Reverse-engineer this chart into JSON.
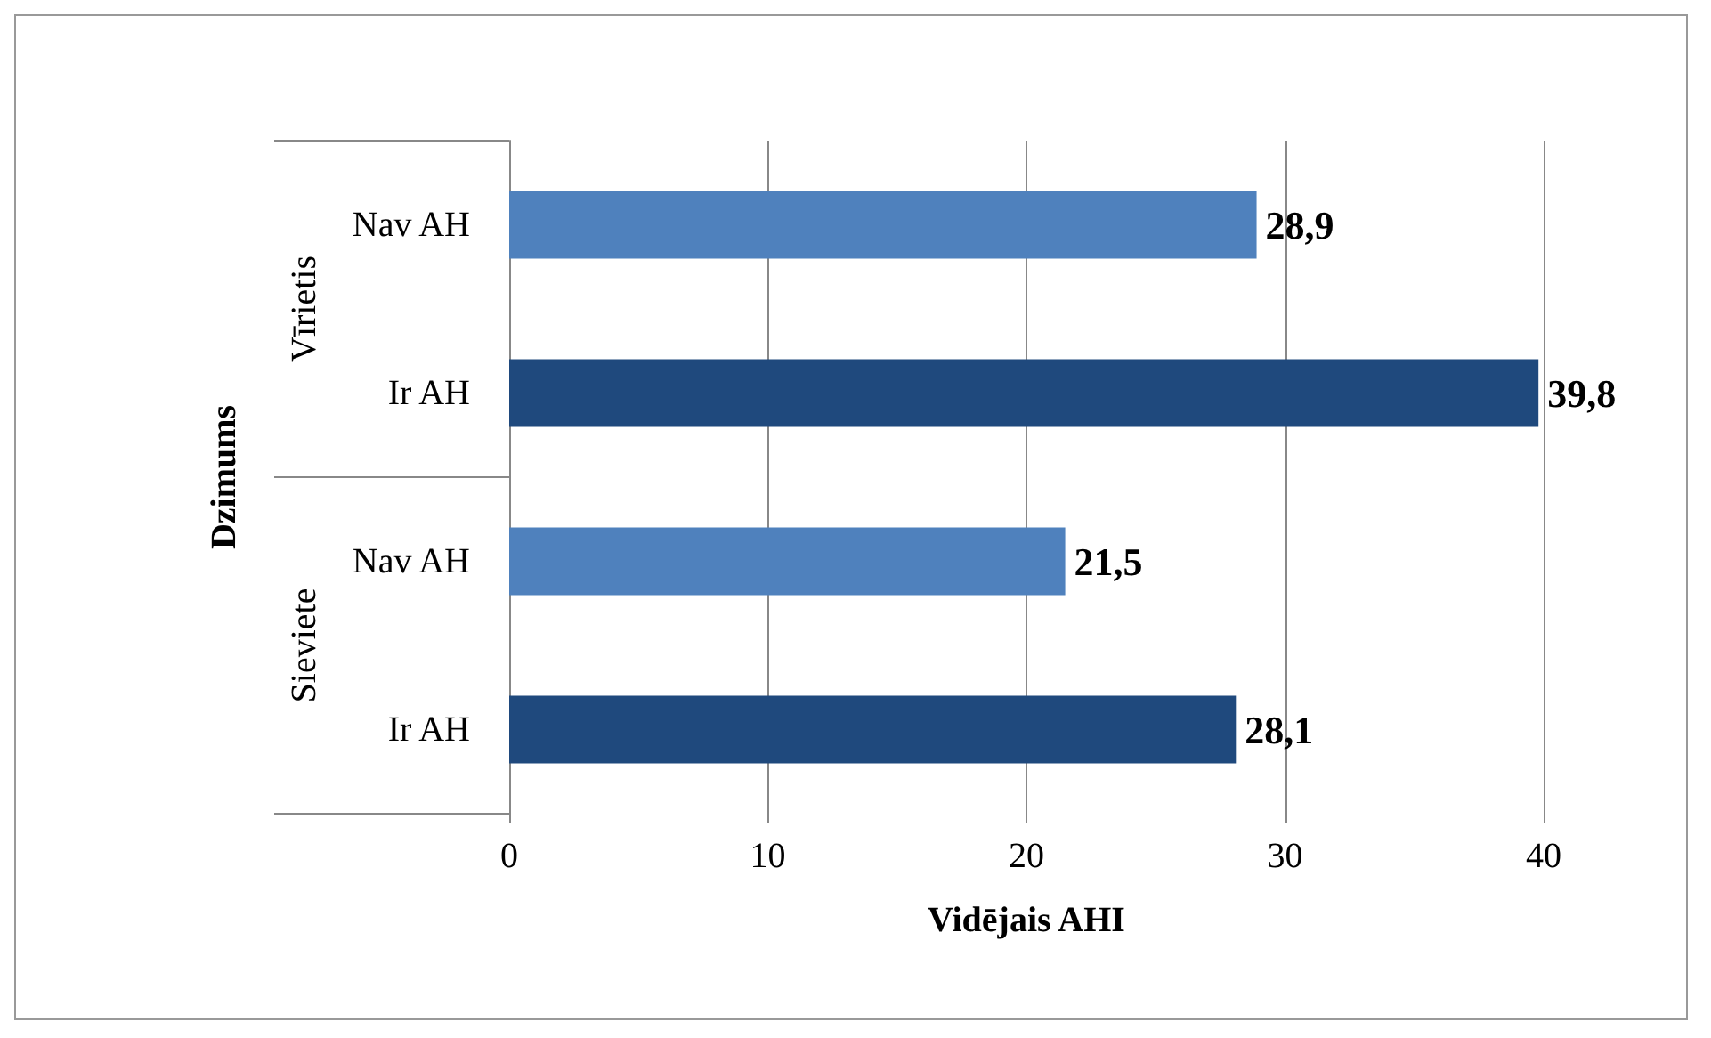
{
  "chart_data": {
    "type": "bar",
    "orientation": "horizontal",
    "ylabel": "Dzimums",
    "xlabel": "Vidējais AHI",
    "categories": [
      "Nav AH",
      "Ir AH",
      "Nav AH",
      "Ir AH"
    ],
    "values": [
      28.9,
      39.8,
      21.5,
      28.1
    ],
    "colors": [
      "#4f81bd",
      "#1f497d",
      "#4f81bd",
      "#1f497d"
    ],
    "value_labels": [
      "28,9",
      "39,8",
      "21,5",
      "28,1"
    ],
    "annotations": [
      "Vīrietis",
      "Sieviete"
    ],
    "xlim": [
      0,
      40
    ],
    "xticks": [
      0,
      10,
      20,
      30,
      40
    ],
    "grid": "x"
  }
}
